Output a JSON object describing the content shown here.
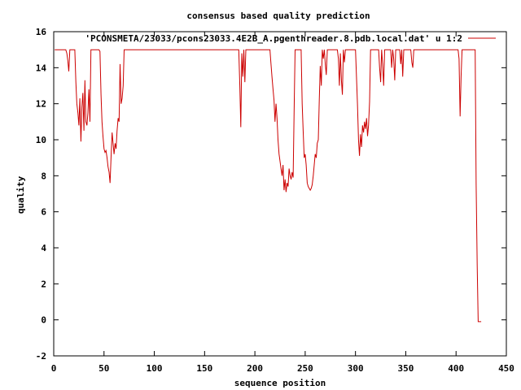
{
  "chart_data": {
    "type": "line",
    "title": "consensus based quality prediction",
    "xlabel": "sequence position",
    "ylabel": "quality",
    "xlim": [
      0,
      450
    ],
    "ylim": [
      -2,
      16
    ],
    "xticks": [
      "0",
      "50",
      "100",
      "150",
      "200",
      "250",
      "300",
      "350",
      "400",
      "450"
    ],
    "yticks": [
      "-2",
      "0",
      "2",
      "4",
      "6",
      "8",
      "10",
      "12",
      "14",
      "16"
    ],
    "grid": false,
    "legend_position": "top-right",
    "series_color": "#cc0000",
    "series": [
      {
        "name": "'PCONSMETA/23033/pcons23033.4E2B_A.pgenthreader.8.pdb.local.dat' u 1:2",
        "points": [
          [
            1,
            15
          ],
          [
            12,
            15
          ],
          [
            13,
            14.8
          ],
          [
            14,
            14.4
          ],
          [
            15,
            13.8
          ],
          [
            16,
            15
          ],
          [
            21,
            15
          ],
          [
            22,
            13.2
          ],
          [
            23,
            12.0
          ],
          [
            24,
            11.5
          ],
          [
            25,
            10.8
          ],
          [
            26,
            12.3
          ],
          [
            27,
            9.9
          ],
          [
            28,
            11.8
          ],
          [
            29,
            12.6
          ],
          [
            30,
            10.5
          ],
          [
            31,
            13.3
          ],
          [
            32,
            11.0
          ],
          [
            33,
            10.8
          ],
          [
            34,
            11.5
          ],
          [
            35,
            12.8
          ],
          [
            36,
            11.0
          ],
          [
            37,
            15
          ],
          [
            45,
            15
          ],
          [
            46,
            14.9
          ],
          [
            47,
            12.5
          ],
          [
            48,
            11.0
          ],
          [
            49,
            10.2
          ],
          [
            50,
            9.5
          ],
          [
            51,
            9.3
          ],
          [
            52,
            9.4
          ],
          [
            53,
            9.0
          ],
          [
            54,
            8.5
          ],
          [
            55,
            8.2
          ],
          [
            56,
            7.6
          ],
          [
            57,
            9.0
          ],
          [
            58,
            10.4
          ],
          [
            59,
            9.8
          ],
          [
            60,
            9.2
          ],
          [
            61,
            9.8
          ],
          [
            62,
            9.5
          ],
          [
            63,
            10.5
          ],
          [
            64,
            11.2
          ],
          [
            65,
            11.0
          ],
          [
            66,
            14.2
          ],
          [
            67,
            12.0
          ],
          [
            68,
            12.3
          ],
          [
            69,
            13.0
          ],
          [
            70,
            15
          ],
          [
            184,
            15
          ],
          [
            185,
            13.0
          ],
          [
            186,
            10.7
          ],
          [
            187,
            14.8
          ],
          [
            188,
            13.5
          ],
          [
            189,
            15
          ],
          [
            190,
            13.2
          ],
          [
            191,
            15
          ],
          [
            215,
            15
          ],
          [
            216,
            14.2
          ],
          [
            217,
            13.5
          ],
          [
            218,
            12.8
          ],
          [
            219,
            12.2
          ],
          [
            220,
            11.0
          ],
          [
            221,
            12.0
          ],
          [
            222,
            11.2
          ],
          [
            223,
            10.0
          ],
          [
            224,
            9.2
          ],
          [
            225,
            8.8
          ],
          [
            226,
            8.4
          ],
          [
            227,
            8.0
          ],
          [
            228,
            8.6
          ],
          [
            229,
            7.2
          ],
          [
            230,
            7.8
          ],
          [
            231,
            7.1
          ],
          [
            232,
            7.6
          ],
          [
            233,
            7.4
          ],
          [
            234,
            8.4
          ],
          [
            235,
            8.0
          ],
          [
            236,
            7.8
          ],
          [
            237,
            8.2
          ],
          [
            238,
            7.9
          ],
          [
            239,
            11.6
          ],
          [
            240,
            15
          ],
          [
            246,
            15
          ],
          [
            247,
            12.0
          ],
          [
            248,
            10.5
          ],
          [
            249,
            9.0
          ],
          [
            250,
            9.2
          ],
          [
            251,
            8.6
          ],
          [
            252,
            7.6
          ],
          [
            253,
            7.4
          ],
          [
            254,
            7.3
          ],
          [
            255,
            7.2
          ],
          [
            256,
            7.3
          ],
          [
            257,
            7.5
          ],
          [
            258,
            8.0
          ],
          [
            259,
            8.6
          ],
          [
            260,
            9.2
          ],
          [
            261,
            9.0
          ],
          [
            262,
            9.8
          ],
          [
            263,
            10.0
          ],
          [
            264,
            12.2
          ],
          [
            265,
            14.1
          ],
          [
            266,
            13.0
          ],
          [
            267,
            15
          ],
          [
            268,
            14.5
          ],
          [
            269,
            15
          ],
          [
            270,
            14.2
          ],
          [
            271,
            13.6
          ],
          [
            272,
            15
          ],
          [
            282,
            15
          ],
          [
            283,
            14.5
          ],
          [
            284,
            13.0
          ],
          [
            285,
            14.8
          ],
          [
            286,
            13.3
          ],
          [
            287,
            12.5
          ],
          [
            288,
            15
          ],
          [
            289,
            14.3
          ],
          [
            290,
            15
          ],
          [
            300,
            15
          ],
          [
            301,
            13.5
          ],
          [
            302,
            12.0
          ],
          [
            303,
            10.0
          ],
          [
            304,
            9.1
          ],
          [
            305,
            10.3
          ],
          [
            306,
            9.6
          ],
          [
            307,
            10.8
          ],
          [
            308,
            10.4
          ],
          [
            309,
            11.0
          ],
          [
            310,
            10.6
          ],
          [
            311,
            11.2
          ],
          [
            312,
            10.2
          ],
          [
            313,
            10.8
          ],
          [
            314,
            12.1
          ],
          [
            315,
            15
          ],
          [
            323,
            15
          ],
          [
            324,
            14.0
          ],
          [
            325,
            13.2
          ],
          [
            326,
            15
          ],
          [
            327,
            14.2
          ],
          [
            328,
            13.0
          ],
          [
            329,
            15
          ],
          [
            335,
            15
          ],
          [
            336,
            14.0
          ],
          [
            337,
            15
          ],
          [
            338,
            14.5
          ],
          [
            339,
            13.3
          ],
          [
            340,
            15
          ],
          [
            344,
            15
          ],
          [
            345,
            14.2
          ],
          [
            346,
            15
          ],
          [
            347,
            13.5
          ],
          [
            348,
            15
          ],
          [
            355,
            15
          ],
          [
            356,
            14.3
          ],
          [
            357,
            14.0
          ],
          [
            358,
            15
          ],
          [
            402,
            15
          ],
          [
            403,
            14.5
          ],
          [
            404,
            11.3
          ],
          [
            405,
            13.5
          ],
          [
            406,
            15
          ],
          [
            419,
            15
          ],
          [
            420,
            7.5
          ],
          [
            421,
            3.0
          ],
          [
            422,
            -0.1
          ],
          [
            425,
            -0.1
          ]
        ]
      }
    ]
  }
}
